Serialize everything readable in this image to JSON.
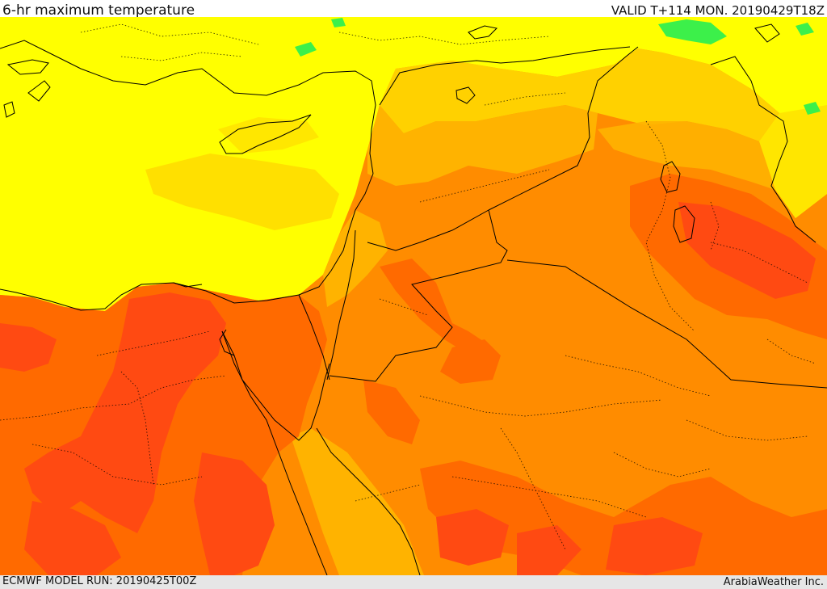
{
  "header": {
    "title": "6-hr maximum temperature",
    "valid_time": "VALID T+114 MON. 20190429T18Z"
  },
  "footer": {
    "model_run": "ECMWF MODEL RUN: 20190425T00Z",
    "credit": "ArabiaWeather Inc."
  },
  "colors": {
    "background_bar": "#e6e6e6",
    "yellow": "#ffff00",
    "light_orange": "#ffdd00",
    "orange_yellow": "#ffb300",
    "orange": "#ff8c00",
    "dark_orange": "#ff6a00",
    "red_orange": "#ff4a12",
    "green": "#3cf04a",
    "border_line": "#000000"
  }
}
